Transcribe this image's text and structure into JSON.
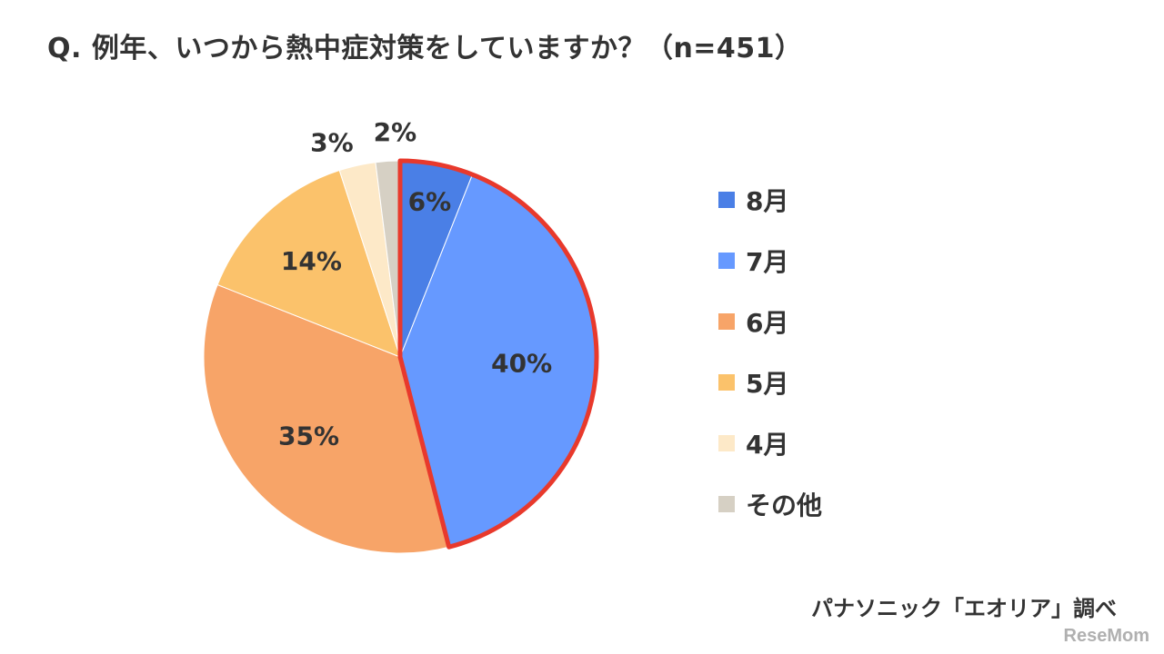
{
  "title": "Q. 例年、いつから熱中症対策をしていますか？（n=451）",
  "source": "パナソニック「エオリア」調べ",
  "watermark": "ReseMom",
  "highlight_color": "#e8392c",
  "chart_data": {
    "type": "pie",
    "title": "Q. 例年、いつから熱中症対策をしていますか？（n=451）",
    "n": 451,
    "start": "12 o'clock, clockwise",
    "legend_position": "right",
    "highlighted": [
      "8月",
      "7月"
    ],
    "slices": [
      {
        "label": "8月",
        "value": 6,
        "display": "6%",
        "color": "#4a7fe6"
      },
      {
        "label": "7月",
        "value": 40,
        "display": "40%",
        "color": "#6699ff"
      },
      {
        "label": "6月",
        "value": 35,
        "display": "35%",
        "color": "#f7a468"
      },
      {
        "label": "5月",
        "value": 14,
        "display": "14%",
        "color": "#fbc26b"
      },
      {
        "label": "4月",
        "value": 3,
        "display": "3%",
        "color": "#fde9c8"
      },
      {
        "label": "その他",
        "value": 2,
        "display": "2%",
        "color": "#d6d0c4"
      }
    ]
  }
}
